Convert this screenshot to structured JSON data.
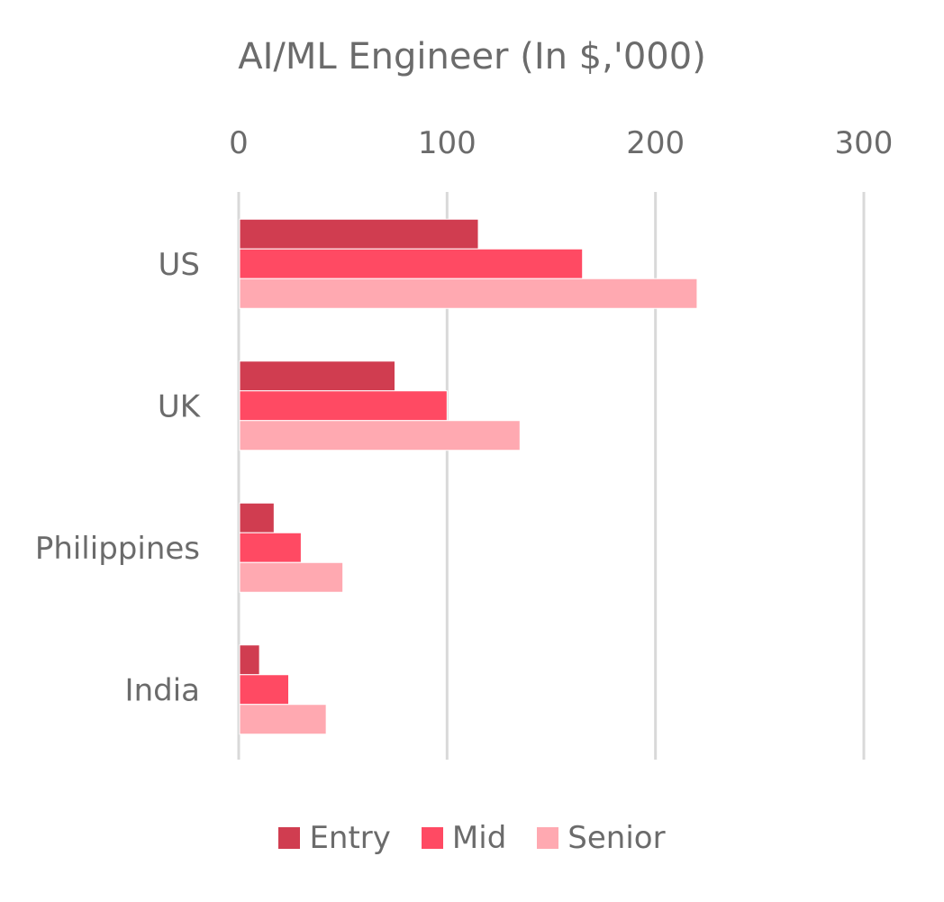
{
  "chart_data": {
    "type": "bar",
    "orientation": "horizontal",
    "title": "AI/ML Engineer (In $,'000)",
    "categories": [
      "US",
      "UK",
      "Philippines",
      "India"
    ],
    "series": [
      {
        "name": "Entry",
        "color": "#D03D50",
        "values": [
          115,
          75,
          17,
          10
        ]
      },
      {
        "name": "Mid",
        "color": "#FF4A63",
        "values": [
          165,
          100,
          30,
          24
        ]
      },
      {
        "name": "Senior",
        "color": "#FFA9B1",
        "values": [
          220,
          135,
          50,
          42
        ]
      }
    ],
    "xlim": [
      0,
      300
    ],
    "xticks": [
      "0",
      "100",
      "200",
      "300"
    ],
    "axis_position": "top",
    "grid": true,
    "legend": "bottom"
  }
}
